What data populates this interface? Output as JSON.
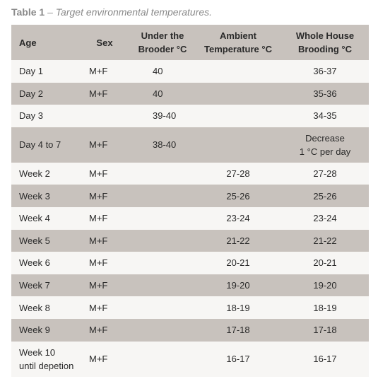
{
  "caption": {
    "label": "Table 1",
    "separator": " – ",
    "text": "Target environmental temperatures."
  },
  "table": {
    "headers": {
      "age": "Age",
      "sex": "Sex",
      "brooder": "Under the\nBrooder °C",
      "ambient": "Ambient\nTemperature °C",
      "whole": "Whole House\nBrooding °C"
    },
    "rows": [
      {
        "age": "Day 1",
        "sex": "M+F",
        "brooder": "40",
        "ambient": "",
        "whole": "36-37"
      },
      {
        "age": "Day 2",
        "sex": "M+F",
        "brooder": "40",
        "ambient": "",
        "whole": "35-36"
      },
      {
        "age": "Day 3",
        "sex": "",
        "brooder": "39-40",
        "ambient": "",
        "whole": "34-35"
      },
      {
        "age": "Day 4 to 7",
        "sex": "M+F",
        "brooder": "38-40",
        "ambient": "",
        "whole": "Decrease\n1 °C per day"
      },
      {
        "age": "Week 2",
        "sex": "M+F",
        "brooder": "",
        "ambient": "27-28",
        "whole": "27-28"
      },
      {
        "age": "Week 3",
        "sex": "M+F",
        "brooder": "",
        "ambient": "25-26",
        "whole": "25-26"
      },
      {
        "age": "Week 4",
        "sex": "M+F",
        "brooder": "",
        "ambient": "23-24",
        "whole": "23-24"
      },
      {
        "age": "Week 5",
        "sex": "M+F",
        "brooder": "",
        "ambient": "21-22",
        "whole": "21-22"
      },
      {
        "age": "Week 6",
        "sex": "M+F",
        "brooder": "",
        "ambient": "20-21",
        "whole": "20-21"
      },
      {
        "age": "Week 7",
        "sex": "M+F",
        "brooder": "",
        "ambient": "19-20",
        "whole": "19-20"
      },
      {
        "age": "Week 8",
        "sex": "M+F",
        "brooder": "",
        "ambient": "18-19",
        "whole": "18-19"
      },
      {
        "age": "Week 9",
        "sex": "M+F",
        "brooder": "",
        "ambient": "17-18",
        "whole": "17-18"
      },
      {
        "age": "Week 10\nuntil depetion",
        "sex": "M+F",
        "brooder": "",
        "ambient": "16-17",
        "whole": "16-17"
      }
    ]
  }
}
